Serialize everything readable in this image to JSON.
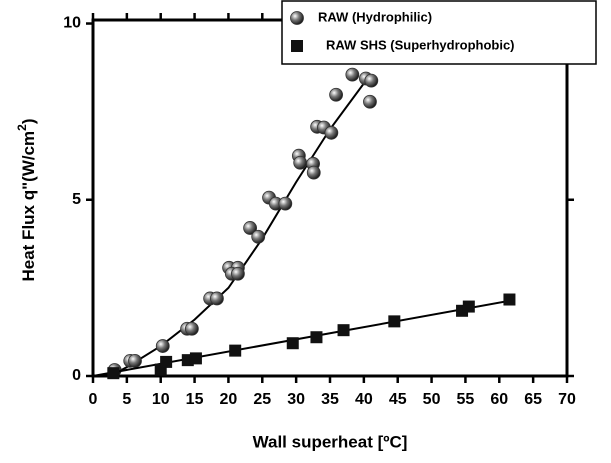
{
  "chart_data": {
    "type": "scatter",
    "xlabel": "Wall superheat [ºC]",
    "ylabel": [
      "Heat Flux q\"(W/cm",
      "2",
      ")"
    ],
    "xlim": [
      0,
      70
    ],
    "ylim": [
      0,
      10.1
    ],
    "xticks": [
      0,
      5,
      10,
      15,
      20,
      25,
      30,
      35,
      40,
      45,
      50,
      55,
      60,
      65,
      70
    ],
    "yticks": [
      0,
      5,
      10
    ],
    "legend": "upper right",
    "series": [
      {
        "name": "RAW (Hydrophilic)",
        "marker": "sphere",
        "color": "#333333",
        "x": [
          3.2,
          5.5,
          6.2,
          10.3,
          13.9,
          14.6,
          17.3,
          18.3,
          20.1,
          21.4,
          20.5,
          21.4,
          23.2,
          24.4,
          26.0,
          27.0,
          28.4,
          30.4,
          30.6,
          32.5,
          32.6,
          33.1,
          34.1,
          35.2,
          35.9,
          38.3,
          40.3,
          41.1,
          40.9
        ],
        "values": [
          0.17,
          0.43,
          0.43,
          0.85,
          1.34,
          1.34,
          2.2,
          2.2,
          3.07,
          3.07,
          2.9,
          2.9,
          4.2,
          3.95,
          5.06,
          4.89,
          4.89,
          6.25,
          6.05,
          6.02,
          5.77,
          7.07,
          7.05,
          6.9,
          7.98,
          8.55,
          8.44,
          8.38,
          7.78
        ],
        "fit_x": [
          0,
          3,
          5,
          10,
          15,
          20,
          25,
          30,
          35,
          40,
          41
        ],
        "fit_y": [
          0,
          0.05,
          0.25,
          0.85,
          1.6,
          2.5,
          3.9,
          5.5,
          7.0,
          8.3,
          8.5
        ]
      },
      {
        "name": "RAW SHS (Superhydrophobic)",
        "marker": "square",
        "color": "#111111",
        "x": [
          3.0,
          10.0,
          10.8,
          14.0,
          15.2,
          21.0,
          29.5,
          33.0,
          37.0,
          44.5,
          54.5,
          55.5,
          61.5
        ],
        "values": [
          0.08,
          0.18,
          0.4,
          0.45,
          0.5,
          0.72,
          0.93,
          1.1,
          1.3,
          1.55,
          1.85,
          1.97,
          2.17
        ],
        "fit_x": [
          0,
          62
        ],
        "fit_y": [
          0,
          2.15
        ]
      }
    ]
  }
}
